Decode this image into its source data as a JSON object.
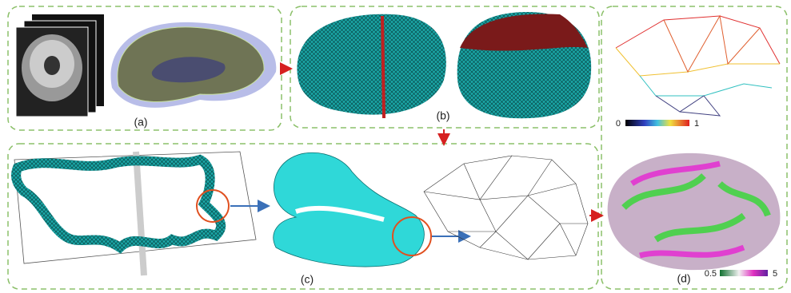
{
  "panels": [
    {
      "label": "(a)"
    },
    {
      "label": "(b)"
    },
    {
      "label": "(c)"
    },
    {
      "label": "(d)"
    }
  ],
  "colorbars": [
    {
      "min": "0",
      "max": "1"
    },
    {
      "min": "0.5",
      "max": "5"
    }
  ]
}
